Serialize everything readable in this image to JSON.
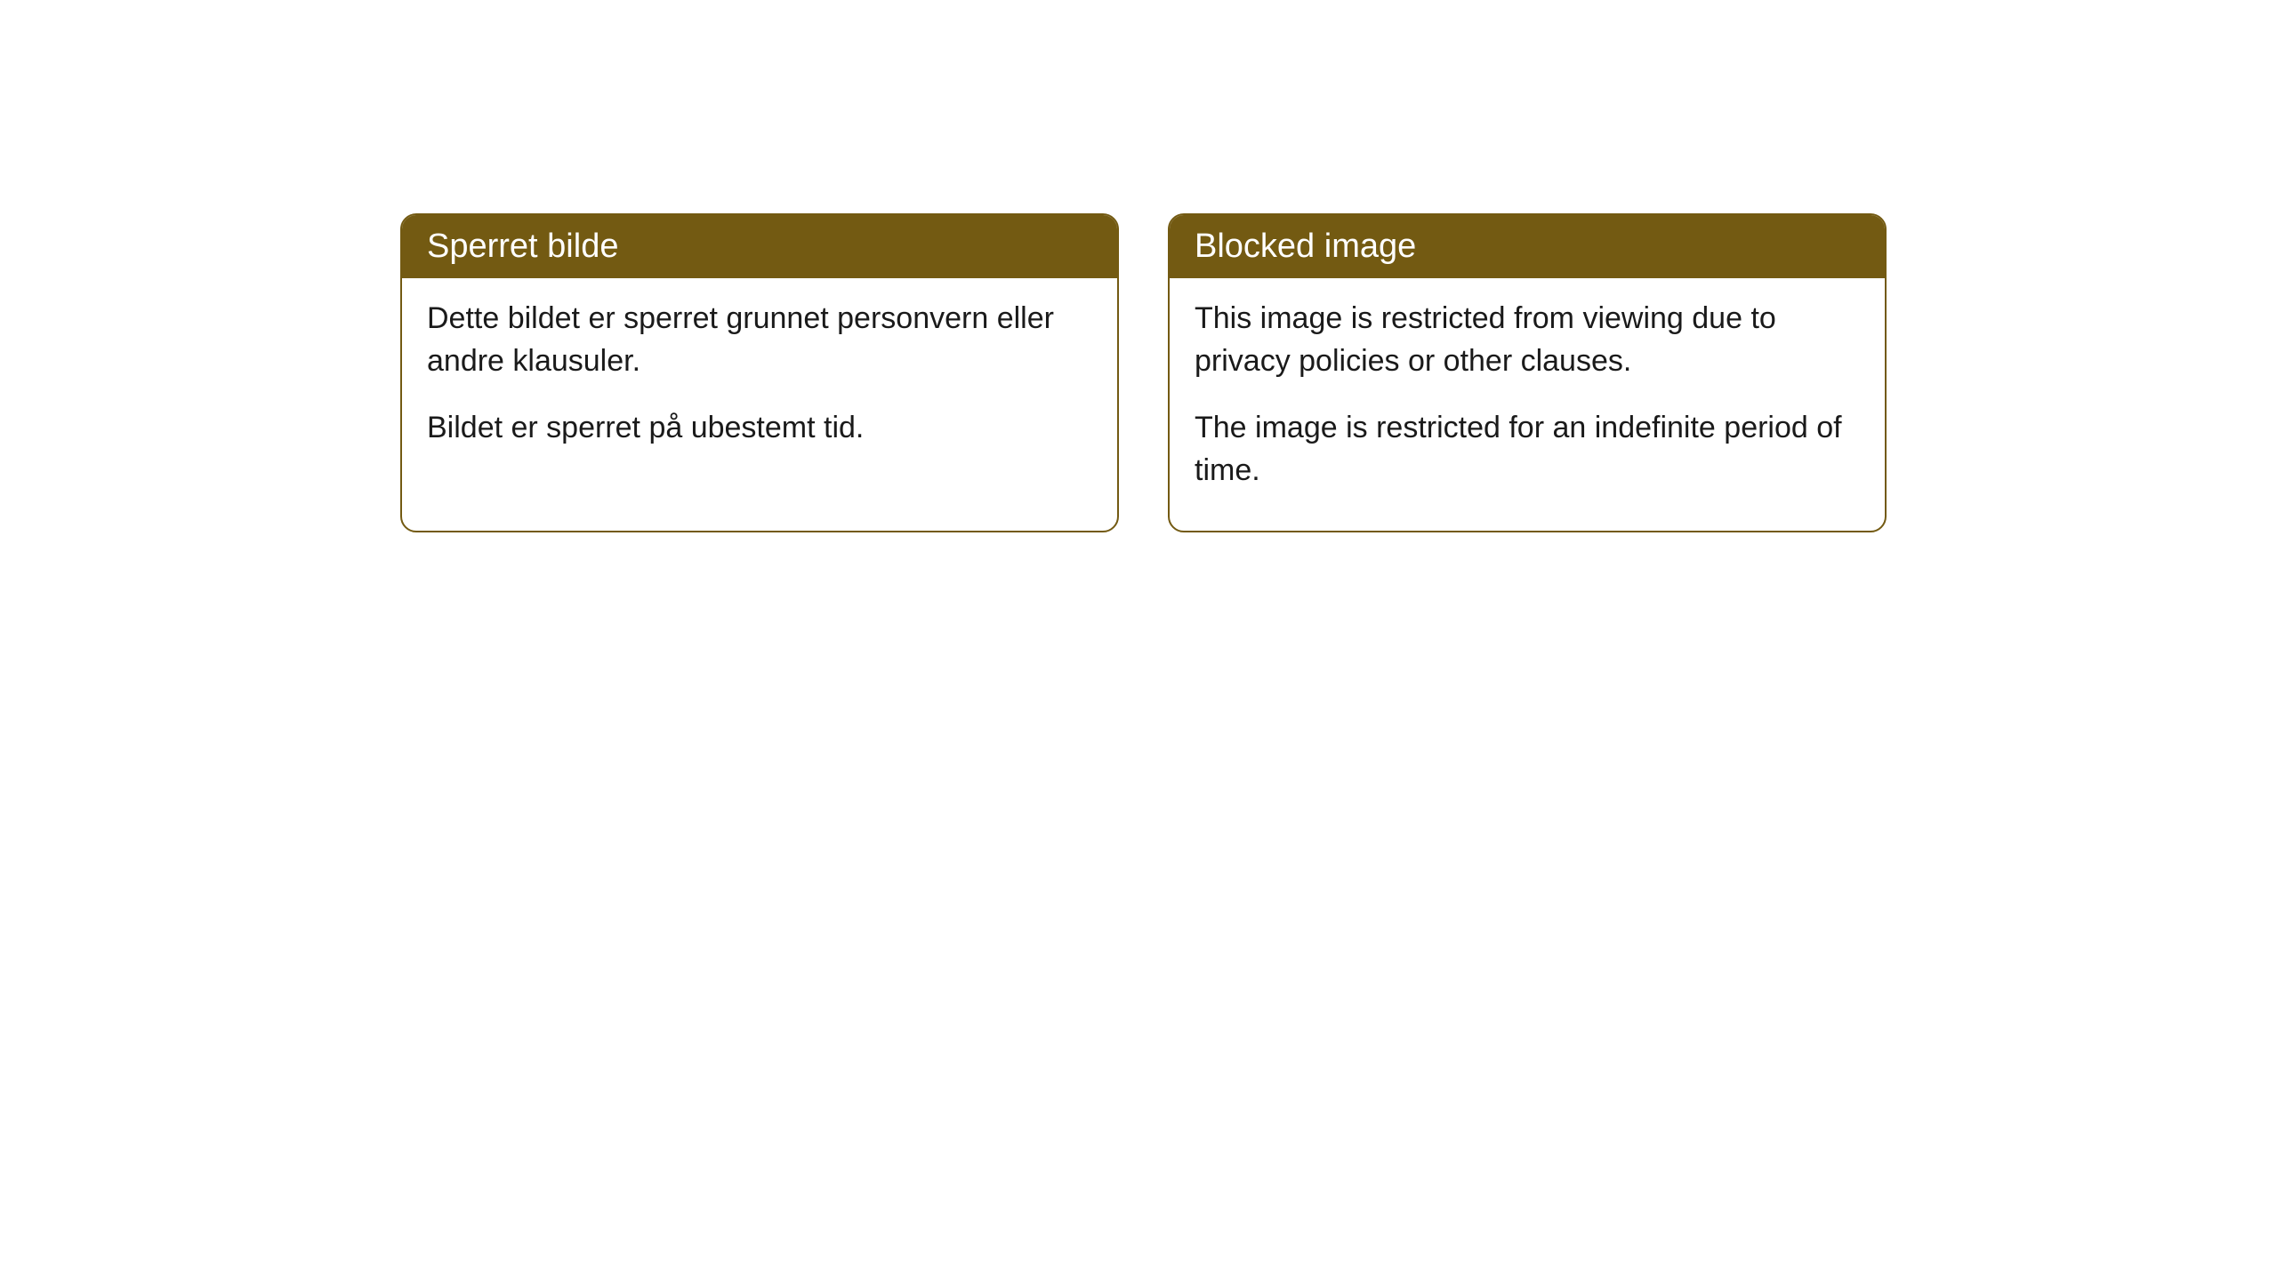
{
  "cards": [
    {
      "title": "Sperret bilde",
      "paragraph1": "Dette bildet er sperret grunnet personvern eller andre klausuler.",
      "paragraph2": "Bildet er sperret på ubestemt tid."
    },
    {
      "title": "Blocked image",
      "paragraph1": "This image is restricted from viewing due to privacy policies or other clauses.",
      "paragraph2": "The image is restricted for an indefinite period of time."
    }
  ],
  "styling": {
    "header_background_color": "#735a12",
    "header_text_color": "#ffffff",
    "border_color": "#735a12",
    "body_background_color": "#ffffff",
    "body_text_color": "#1a1a1a",
    "border_radius": 18,
    "header_fontsize": 38,
    "body_fontsize": 34
  }
}
